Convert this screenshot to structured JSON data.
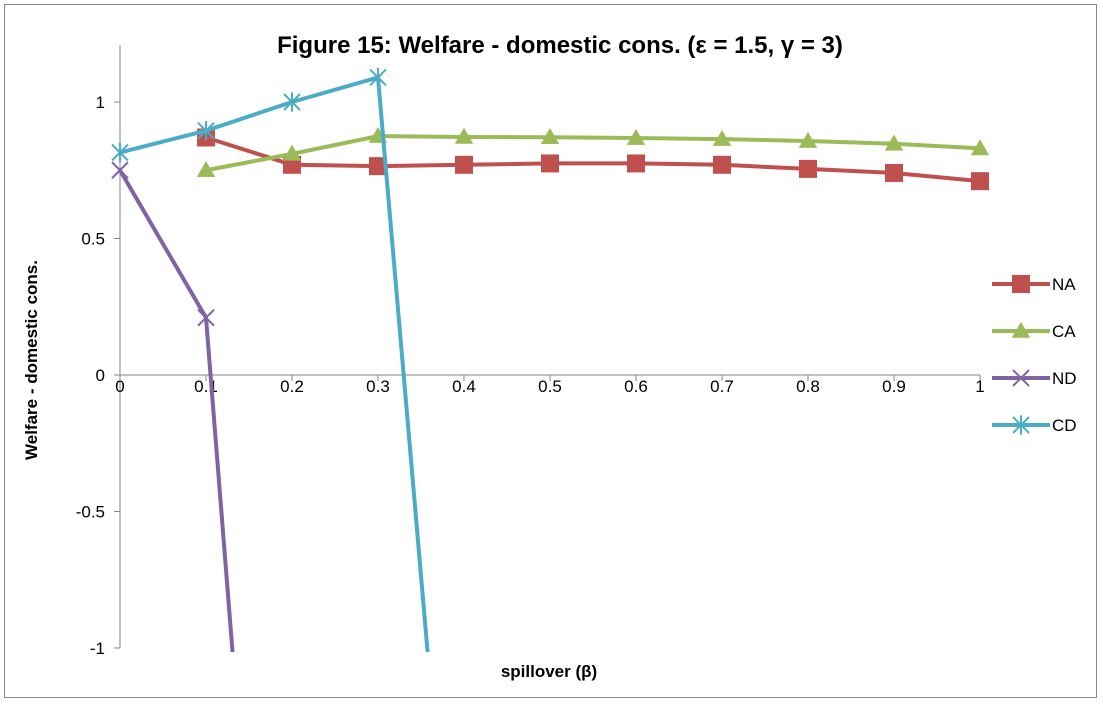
{
  "chart_data": {
    "type": "line",
    "title": "Figure 15: Welfare - domestic cons. (ε = 1.5, γ = 3)",
    "xlabel": "spillover (β)",
    "ylabel": "Welfare - domestic cons.",
    "xlim": [
      0,
      1
    ],
    "ylim": [
      -1,
      1.1
    ],
    "x_ticks": [
      "0",
      "0.1",
      "0.2",
      "0.3",
      "0.4",
      "0.5",
      "0.6",
      "0.7",
      "0.8",
      "0.9",
      "1"
    ],
    "y_ticks": [
      "1",
      "0.5",
      "0",
      "-0.5",
      "-1"
    ],
    "y_tick_values": [
      1,
      0.5,
      0,
      -0.5,
      -1
    ],
    "legend_position": "right",
    "grid": false,
    "series": [
      {
        "name": "NA",
        "color": "#C0504D",
        "marker": "square",
        "x": [
          0.1,
          0.2,
          0.3,
          0.4,
          0.5,
          0.6,
          0.7,
          0.8,
          0.9,
          1.0
        ],
        "y": [
          0.87,
          0.77,
          0.765,
          0.77,
          0.775,
          0.775,
          0.77,
          0.755,
          0.74,
          0.71
        ]
      },
      {
        "name": "CA",
        "color": "#9BBB59",
        "marker": "triangle",
        "x": [
          0.1,
          0.2,
          0.3,
          0.4,
          0.5,
          0.6,
          0.7,
          0.8,
          0.9,
          1.0
        ],
        "y": [
          0.75,
          0.81,
          0.875,
          0.872,
          0.871,
          0.868,
          0.864,
          0.857,
          0.847,
          0.83
        ]
      },
      {
        "name": "ND",
        "color": "#8064A2",
        "marker": "x",
        "x": [
          0,
          0.1,
          0.133
        ],
        "y": [
          0.75,
          0.21,
          -1.1
        ]
      },
      {
        "name": "CD",
        "color": "#4BACC6",
        "marker": "star",
        "x": [
          0,
          0.1,
          0.2,
          0.3,
          0.36
        ],
        "y": [
          0.815,
          0.895,
          1.0,
          1.09,
          -1.1
        ]
      }
    ]
  }
}
